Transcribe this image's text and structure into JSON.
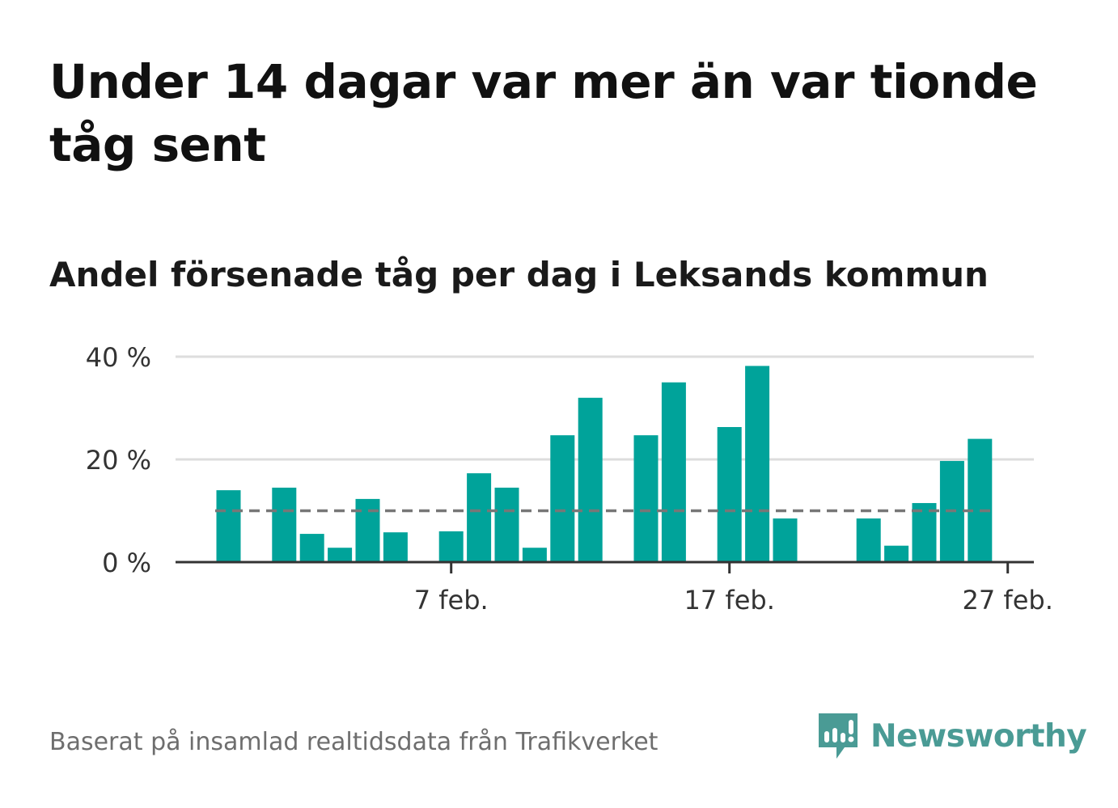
{
  "title": "Under 14 dagar var mer än var tionde tåg sent",
  "subtitle": "Andel försenade tåg per dag i Leksands kommun",
  "source": "Baserat på insamlad realtidsdata från Trafikverket",
  "brand": {
    "name": "Newsworthy",
    "logo_icon": "newsworthy-bar-chart-bubble-icon"
  },
  "colors": {
    "bar": "#00a39a",
    "reference_line": "#777777",
    "grid": "#dddddd",
    "axis": "#333333",
    "brand": "#4a9b95"
  },
  "chart_data": {
    "type": "bar",
    "x_tick_labels": [
      "7 feb.",
      "17 feb.",
      "27 feb."
    ],
    "y_tick_labels": [
      "0 %",
      "20 %",
      "40 %"
    ],
    "y_ticks": [
      0,
      20,
      40
    ],
    "ylim": [
      0,
      40
    ],
    "grid": true,
    "first_day": 30,
    "days_in_first_month": 31,
    "x_tick_days": [
      7,
      17,
      27
    ],
    "values": [
      14,
      0,
      14.5,
      5.5,
      2.8,
      12.3,
      5.8,
      0,
      6,
      17.3,
      14.5,
      2.8,
      24.7,
      32,
      0,
      24.7,
      35,
      0,
      26.3,
      38.2,
      8.5,
      0,
      0,
      8.5,
      3.2,
      11.5,
      19.7,
      24
    ],
    "reference_line": 10
  }
}
